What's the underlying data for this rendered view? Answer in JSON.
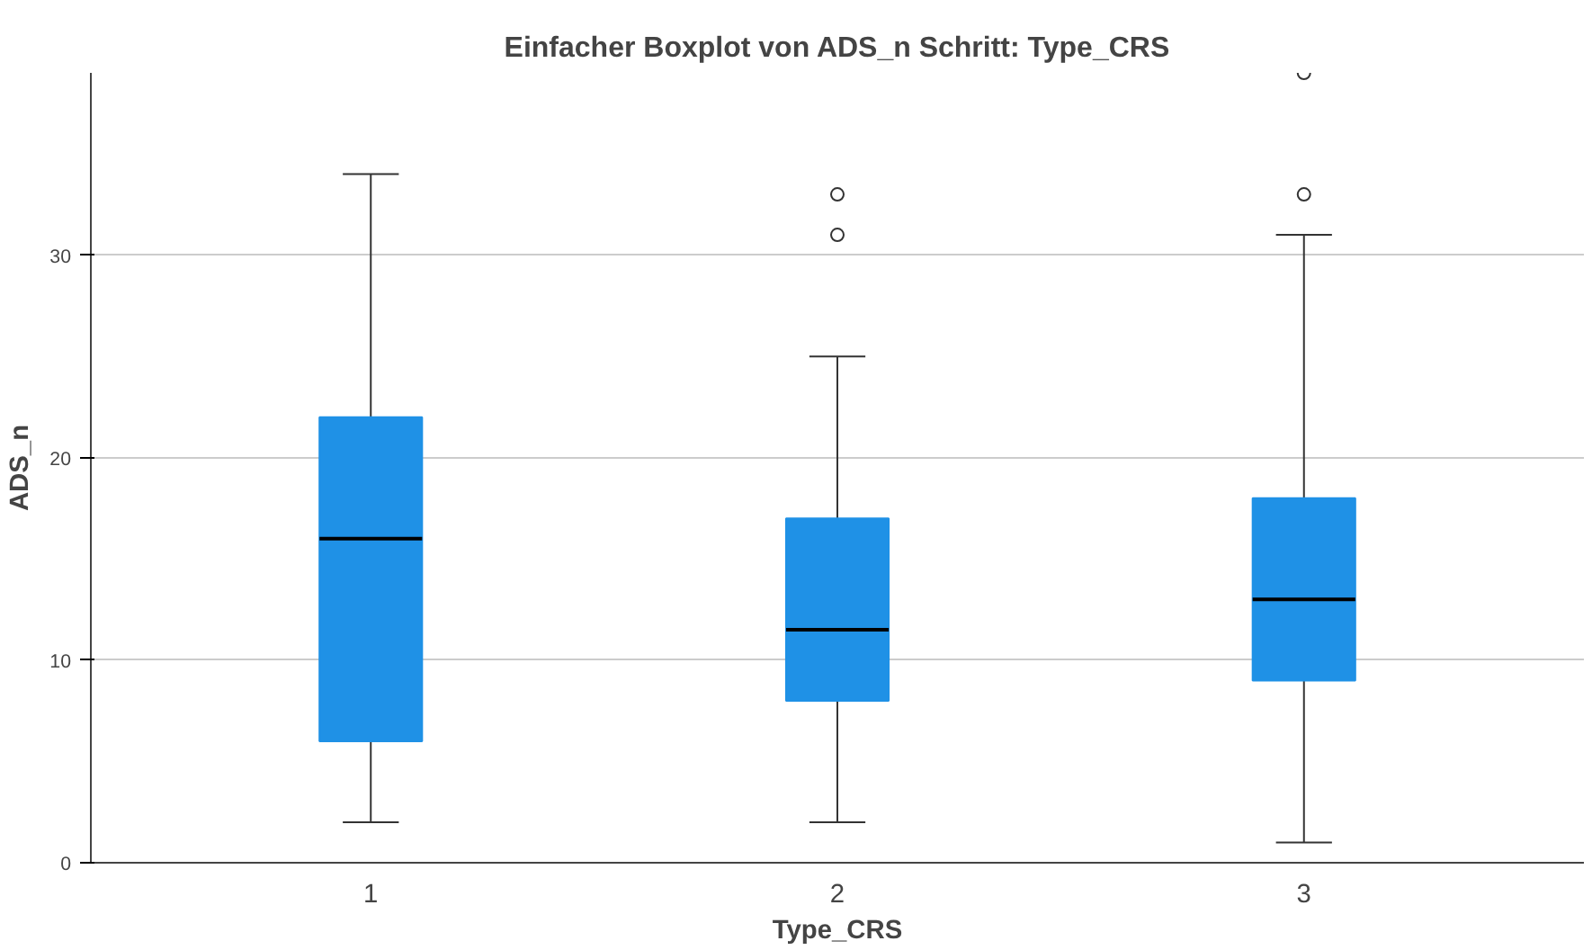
{
  "chart_data": {
    "type": "box",
    "title": "Einfacher Boxplot von ADS_n Schritt: Type_CRS",
    "xlabel": "Type_CRS",
    "ylabel": "ADS_n",
    "categories": [
      "1",
      "2",
      "3"
    ],
    "color": "#1f91e6",
    "boxes": [
      {
        "low": 2,
        "q1": 6,
        "median": 16,
        "q3": 22,
        "high": 34
      },
      {
        "low": 2,
        "q1": 8,
        "median": 11.5,
        "q3": 17,
        "high": 25,
        "outliers": [
          31,
          33
        ]
      },
      {
        "low": 1,
        "q1": 9,
        "median": 13,
        "q3": 18,
        "high": 31,
        "outliers": [
          33,
          39
        ]
      }
    ],
    "ylim": [
      0,
      39
    ],
    "yticks": [
      0,
      10,
      20,
      30
    ],
    "grid": "y"
  }
}
